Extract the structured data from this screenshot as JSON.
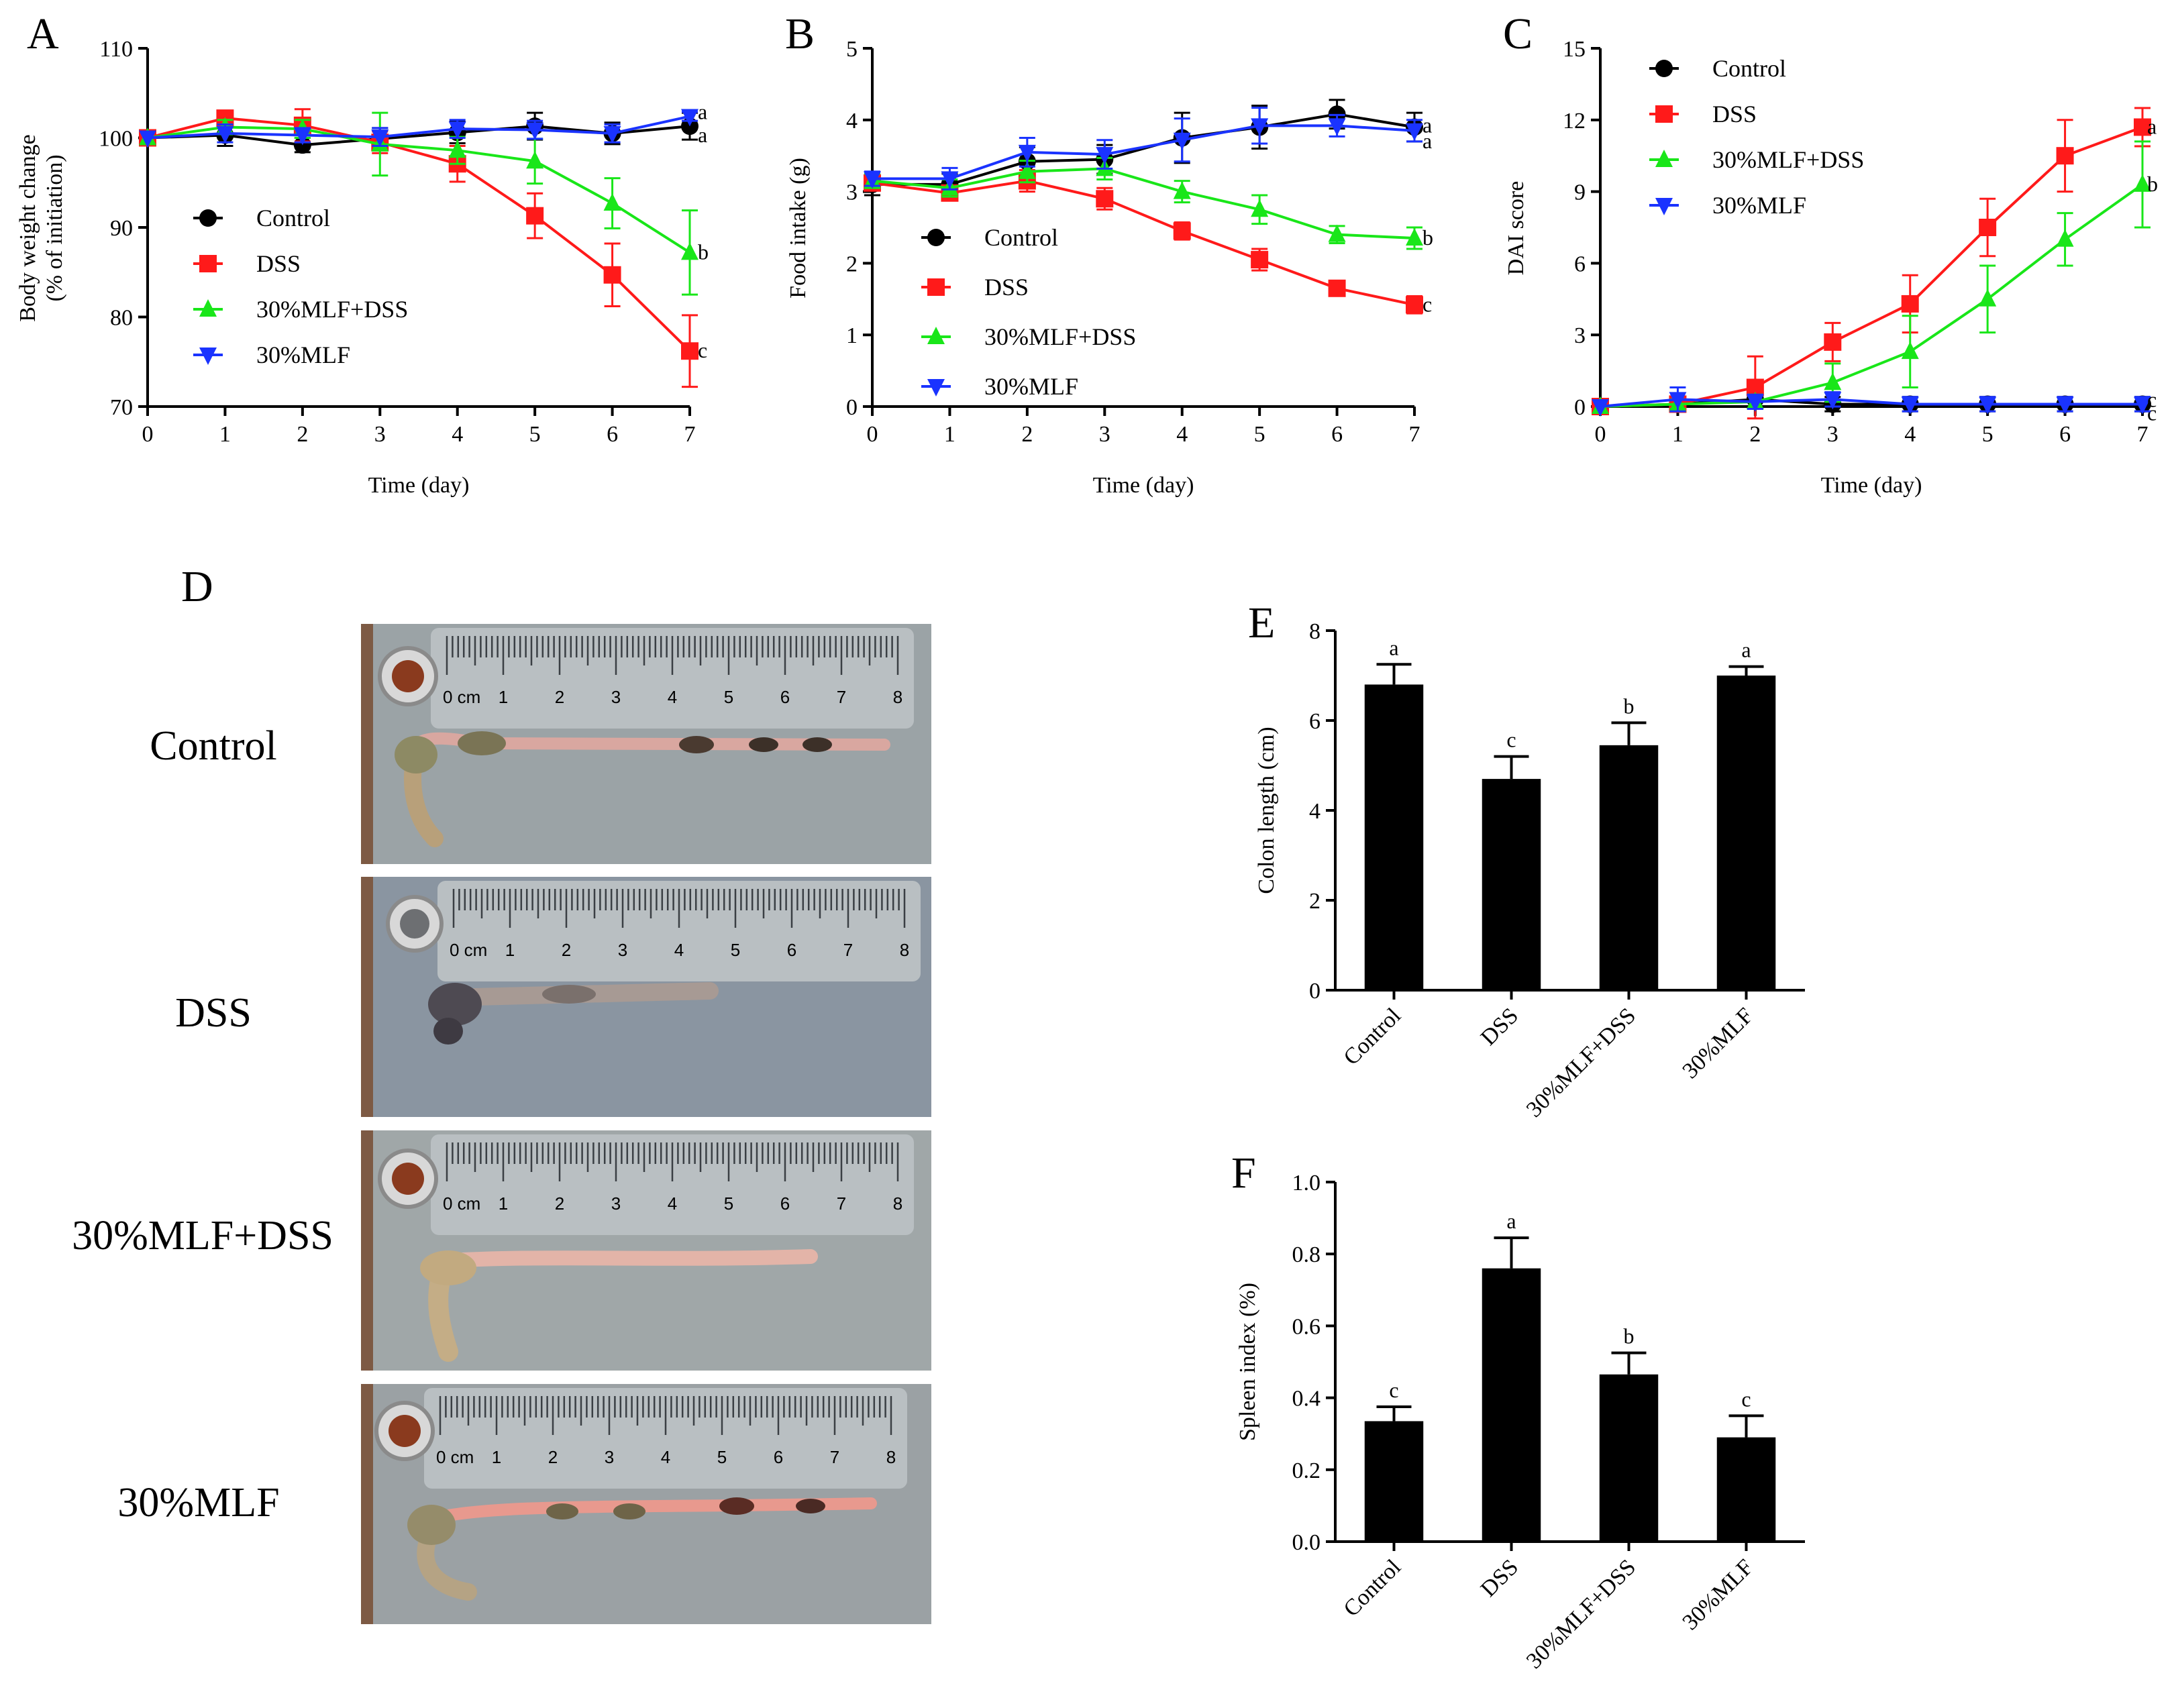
{
  "figure": {
    "photo_panel": {
      "letter": "D",
      "rows": [
        {
          "label": "Control"
        },
        {
          "label": "DSS"
        },
        {
          "label": "30%MLF+DSS"
        },
        {
          "label": "30%MLF"
        }
      ],
      "ruler_label": "0 cm",
      "ruler_numbers": [
        "1",
        "2",
        "3",
        "4",
        "5",
        "6",
        "7",
        "8"
      ]
    }
  },
  "chart_data": [
    {
      "id": "A",
      "type": "line",
      "letter": "A",
      "xlabel": "Time (day)",
      "ylabel_lines": [
        "Body weight change",
        "(% of initiation)"
      ],
      "xlim": [
        0,
        7
      ],
      "ylim": [
        70,
        110
      ],
      "xticks": [
        0,
        1,
        2,
        3,
        4,
        5,
        6,
        7
      ],
      "yticks": [
        70,
        80,
        90,
        100,
        110
      ],
      "x": [
        0,
        1,
        2,
        3,
        4,
        5,
        6,
        7
      ],
      "legend_position": "center-left",
      "series": [
        {
          "name": "Control",
          "color": "#000000",
          "marker": "circle",
          "values": [
            100,
            100.3,
            99.2,
            99.9,
            100.6,
            101.3,
            100.5,
            101.3
          ],
          "errors": [
            0,
            1.2,
            0.8,
            1.2,
            1.2,
            1.5,
            1.2,
            1.5
          ],
          "end_letter": "a"
        },
        {
          "name": "DSS",
          "color": "#ff1a1a",
          "marker": "square",
          "values": [
            100,
            102.2,
            101.4,
            99.5,
            97.1,
            91.3,
            84.7,
            76.2
          ],
          "errors": [
            0,
            0.8,
            1.8,
            1.2,
            2.0,
            2.5,
            3.5,
            4.0
          ],
          "end_letter": "c"
        },
        {
          "name": "30%MLF+DSS",
          "color": "#19e619",
          "marker": "triangle-up",
          "values": [
            100,
            101.2,
            101.0,
            99.3,
            98.6,
            97.4,
            92.7,
            87.2
          ],
          "errors": [
            0,
            0.8,
            1.0,
            3.5,
            1.5,
            2.5,
            2.8,
            4.7
          ],
          "end_letter": "b"
        },
        {
          "name": "30%MLF",
          "color": "#1a33ff",
          "marker": "triangle-down",
          "values": [
            100,
            100.5,
            100.3,
            100.1,
            101.0,
            100.9,
            100.5,
            102.4
          ],
          "errors": [
            0,
            1.0,
            0.8,
            1.0,
            1.0,
            1.0,
            1.0,
            0.5
          ],
          "end_letter": "a"
        }
      ]
    },
    {
      "id": "B",
      "type": "line",
      "letter": "B",
      "xlabel": "Time (day)",
      "ylabel_lines": [
        "Food intake (g)"
      ],
      "xlim": [
        0,
        7
      ],
      "ylim": [
        0,
        5
      ],
      "xticks": [
        0,
        1,
        2,
        3,
        4,
        5,
        6,
        7
      ],
      "yticks": [
        0,
        1,
        2,
        3,
        4,
        5
      ],
      "x": [
        0,
        1,
        2,
        3,
        4,
        5,
        6,
        7
      ],
      "legend_position": "bottom-left",
      "series": [
        {
          "name": "Control",
          "color": "#000000",
          "marker": "circle",
          "values": [
            3.1,
            3.1,
            3.42,
            3.45,
            3.75,
            3.9,
            4.08,
            3.9
          ],
          "errors": [
            0.15,
            0.15,
            0.2,
            0.2,
            0.35,
            0.3,
            0.2,
            0.2
          ],
          "end_letter": "a"
        },
        {
          "name": "DSS",
          "color": "#ff1a1a",
          "marker": "square",
          "values": [
            3.12,
            2.98,
            3.15,
            2.9,
            2.45,
            2.05,
            1.65,
            1.42
          ],
          "errors": [
            0.1,
            0.1,
            0.15,
            0.15,
            0.12,
            0.15,
            0.1,
            0.12
          ],
          "end_letter": "c"
        },
        {
          "name": "30%MLF+DSS",
          "color": "#19e619",
          "marker": "triangle-up",
          "values": [
            3.15,
            3.05,
            3.28,
            3.32,
            3.0,
            2.75,
            2.4,
            2.35
          ],
          "errors": [
            0.1,
            0.12,
            0.15,
            0.15,
            0.15,
            0.2,
            0.12,
            0.15
          ],
          "end_letter": "b"
        },
        {
          "name": "30%MLF",
          "color": "#1a33ff",
          "marker": "triangle-down",
          "values": [
            3.18,
            3.18,
            3.55,
            3.52,
            3.72,
            3.92,
            3.92,
            3.85
          ],
          "errors": [
            0.1,
            0.15,
            0.2,
            0.2,
            0.3,
            0.25,
            0.15,
            0.15
          ],
          "end_letter": "a"
        }
      ]
    },
    {
      "id": "C",
      "type": "line",
      "letter": "C",
      "xlabel": "Time (day)",
      "ylabel_lines": [
        "DAI score"
      ],
      "xlim": [
        0,
        7
      ],
      "ylim": [
        0,
        15
      ],
      "xticks": [
        0,
        1,
        2,
        3,
        4,
        5,
        6,
        7
      ],
      "yticks": [
        0,
        3,
        6,
        9,
        12,
        15
      ],
      "x": [
        0,
        1,
        2,
        3,
        4,
        5,
        6,
        7
      ],
      "legend_position": "top-left",
      "series": [
        {
          "name": "Control",
          "color": "#000000",
          "marker": "circle",
          "values": [
            0,
            0.1,
            0.3,
            0.1,
            0.1,
            0.1,
            0.1,
            0.1
          ],
          "errors": [
            0,
            0.3,
            0.3,
            0.3,
            0.3,
            0.3,
            0.3,
            0.3
          ],
          "end_letter": "c"
        },
        {
          "name": "DSS",
          "color": "#ff1a1a",
          "marker": "square",
          "values": [
            0,
            0.1,
            0.8,
            2.7,
            4.3,
            7.5,
            10.5,
            11.7
          ],
          "errors": [
            0,
            0.2,
            1.3,
            0.8,
            1.2,
            1.2,
            1.5,
            0.8
          ],
          "end_letter": "a"
        },
        {
          "name": "30%MLF+DSS",
          "color": "#19e619",
          "marker": "triangle-up",
          "values": [
            0,
            0.1,
            0.2,
            1.0,
            2.3,
            4.5,
            7.0,
            9.3
          ],
          "errors": [
            0,
            0.2,
            0.3,
            0.8,
            1.5,
            1.4,
            1.1,
            1.8
          ],
          "end_letter": "b"
        },
        {
          "name": "30%MLF",
          "color": "#1a33ff",
          "marker": "triangle-down",
          "values": [
            0,
            0.3,
            0.2,
            0.3,
            0.1,
            0.1,
            0.1,
            0.1
          ],
          "errors": [
            0,
            0.5,
            0.3,
            0.3,
            0.3,
            0.3,
            0.3,
            0.3
          ],
          "end_letter": "c"
        }
      ]
    },
    {
      "id": "E",
      "type": "bar",
      "letter": "E",
      "ylabel": "Colon length (cm)",
      "categories": [
        "Control",
        "DSS",
        "30%MLF+DSS",
        "30%MLF"
      ],
      "values": [
        6.8,
        4.7,
        5.45,
        7.0
      ],
      "errors": [
        0.45,
        0.5,
        0.5,
        0.2
      ],
      "letters": [
        "a",
        "c",
        "b",
        "a"
      ],
      "ylim": [
        0,
        8
      ],
      "yticks": [
        0,
        2,
        4,
        6,
        8
      ]
    },
    {
      "id": "F",
      "type": "bar",
      "letter": "F",
      "ylabel": "Spleen index (%)",
      "categories": [
        "Control",
        "DSS",
        "30%MLF+DSS",
        "30%MLF"
      ],
      "values": [
        0.335,
        0.76,
        0.465,
        0.29
      ],
      "errors": [
        0.04,
        0.085,
        0.06,
        0.06
      ],
      "letters": [
        "c",
        "a",
        "b",
        "c"
      ],
      "ylim": [
        0,
        1.0
      ],
      "yticks": [
        "0.0",
        "0.2",
        "0.4",
        "0.6",
        "0.8",
        "1.0"
      ]
    }
  ]
}
